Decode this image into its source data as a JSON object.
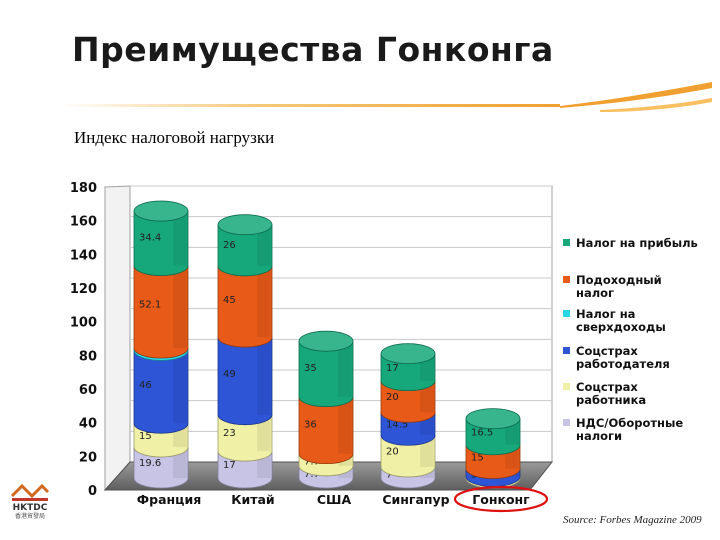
{
  "slide": {
    "title": "Преимущества Гонконга",
    "subtitle": "Индекс налоговой нагрузки",
    "source": "Source: Forbes Magazine 2009",
    "logo_text": "HKTDC",
    "logo_sub": "香港貿發局"
  },
  "colors": {
    "title_rule": "#f0b44a",
    "highlight_ring": "#e01010"
  },
  "chart_data": {
    "type": "bar",
    "stacked": true,
    "style": "3d-cylinder",
    "categories": [
      "Франция",
      "Китай",
      "США",
      "Сингапур",
      "Гонконг"
    ],
    "highlighted_category": "Гонконг",
    "ylim": [
      0,
      180
    ],
    "yticks": [
      0,
      20,
      40,
      60,
      80,
      100,
      120,
      140,
      160,
      180
    ],
    "legend_position": "right",
    "series": [
      {
        "name": "НДС/Оборотные налоги",
        "color": "#c7c4e6",
        "values": [
          19.6,
          17,
          7.7,
          7,
          0
        ],
        "labels": [
          "19.6",
          "17",
          "7.7",
          "7",
          ""
        ]
      },
      {
        "name": "Соцстрах работника",
        "color": "#f0f0a6",
        "values": [
          15,
          23,
          7.7,
          20,
          1
        ],
        "labels": [
          "15",
          "23",
          "7.7",
          "20",
          ""
        ]
      },
      {
        "name": "Соцстрах работодателя",
        "color": "#2d55d6",
        "values": [
          46,
          49,
          0,
          14.5,
          5
        ],
        "labels": [
          "46",
          "49",
          "",
          "14.5",
          "5"
        ]
      },
      {
        "name": "Налог на сверхдоходы",
        "color": "#28d6e6",
        "values": [
          1.5,
          0,
          0,
          0,
          0
        ],
        "labels": [
          "1.5",
          "",
          "",
          "",
          ""
        ]
      },
      {
        "name": "Подоходный налог",
        "color": "#e85a18",
        "values": [
          52.1,
          45,
          36,
          20,
          15
        ],
        "labels": [
          "52.1",
          "45",
          "36",
          "20",
          "15"
        ]
      },
      {
        "name": "Налог на прибыль",
        "color": "#16a87a",
        "values": [
          34.4,
          26,
          35,
          17,
          16.5
        ],
        "labels": [
          "34.4",
          "26",
          "35",
          "17",
          "16.5"
        ]
      }
    ],
    "legend": [
      {
        "label": "Налог на прибыль",
        "color": "#16a87a"
      },
      {
        "label": "Подоходный налог",
        "color": "#e85a18"
      },
      {
        "label": "Налог на сверхдоходы",
        "color": "#28d6e6"
      },
      {
        "label": "Соцстрах работодателя",
        "color": "#2d55d6"
      },
      {
        "label": "Соцстрах работника",
        "color": "#f0f0a6"
      },
      {
        "label": "НДС/Оборотные налоги",
        "color": "#c7c4e6"
      }
    ]
  }
}
